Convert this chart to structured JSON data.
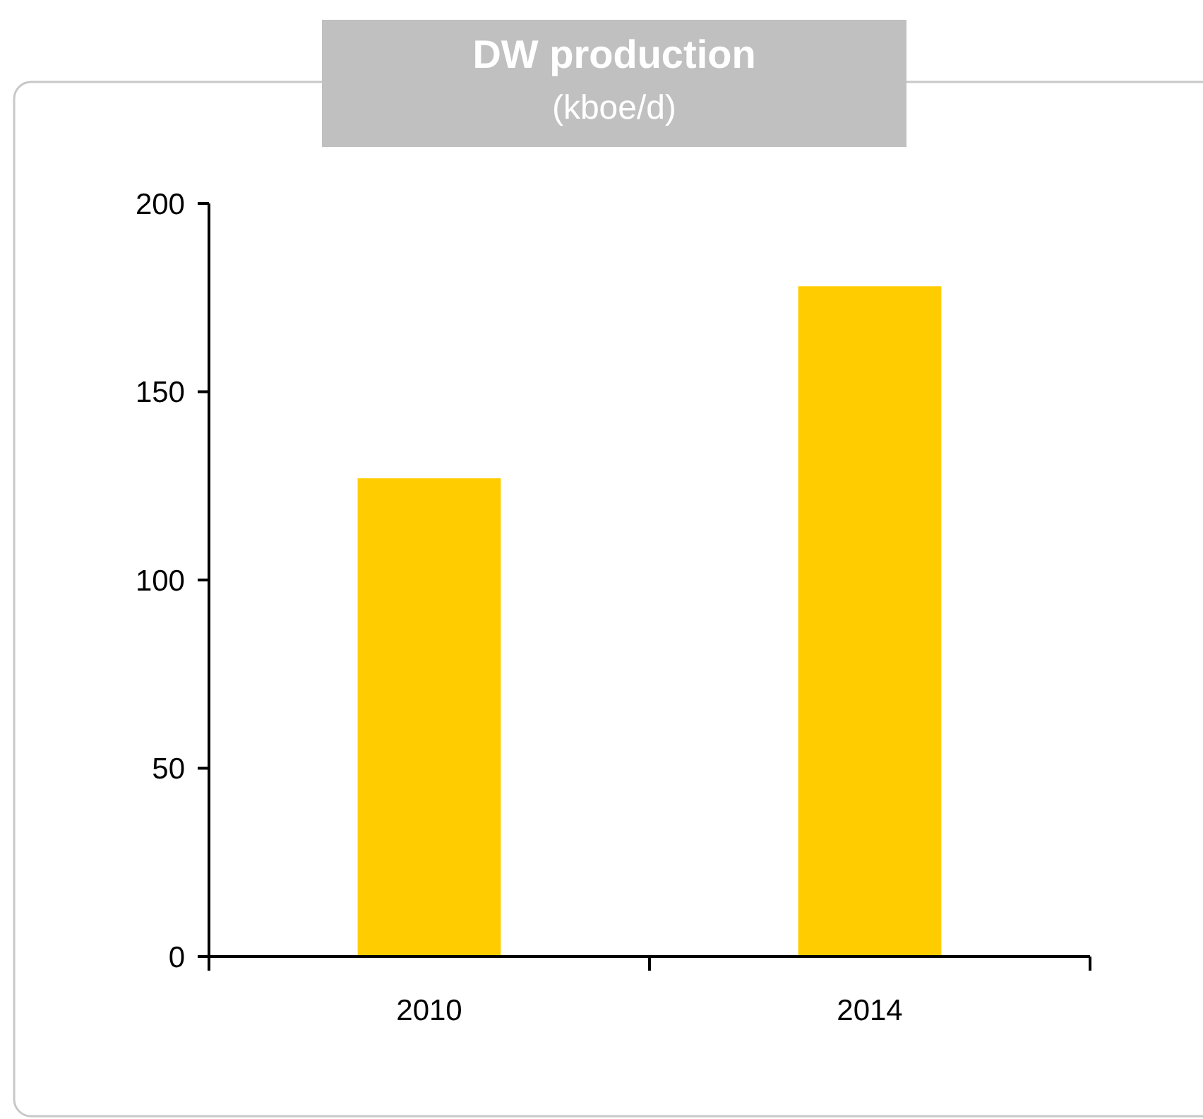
{
  "chart_data": {
    "type": "bar",
    "title": "DW production",
    "subtitle": "(kboe/d)",
    "categories": [
      "2010",
      "2014"
    ],
    "values": [
      127,
      178
    ],
    "color": "#ffcc00",
    "ylim": [
      0,
      200
    ],
    "yticks": [
      0,
      50,
      100,
      150,
      200
    ],
    "grid": false
  }
}
